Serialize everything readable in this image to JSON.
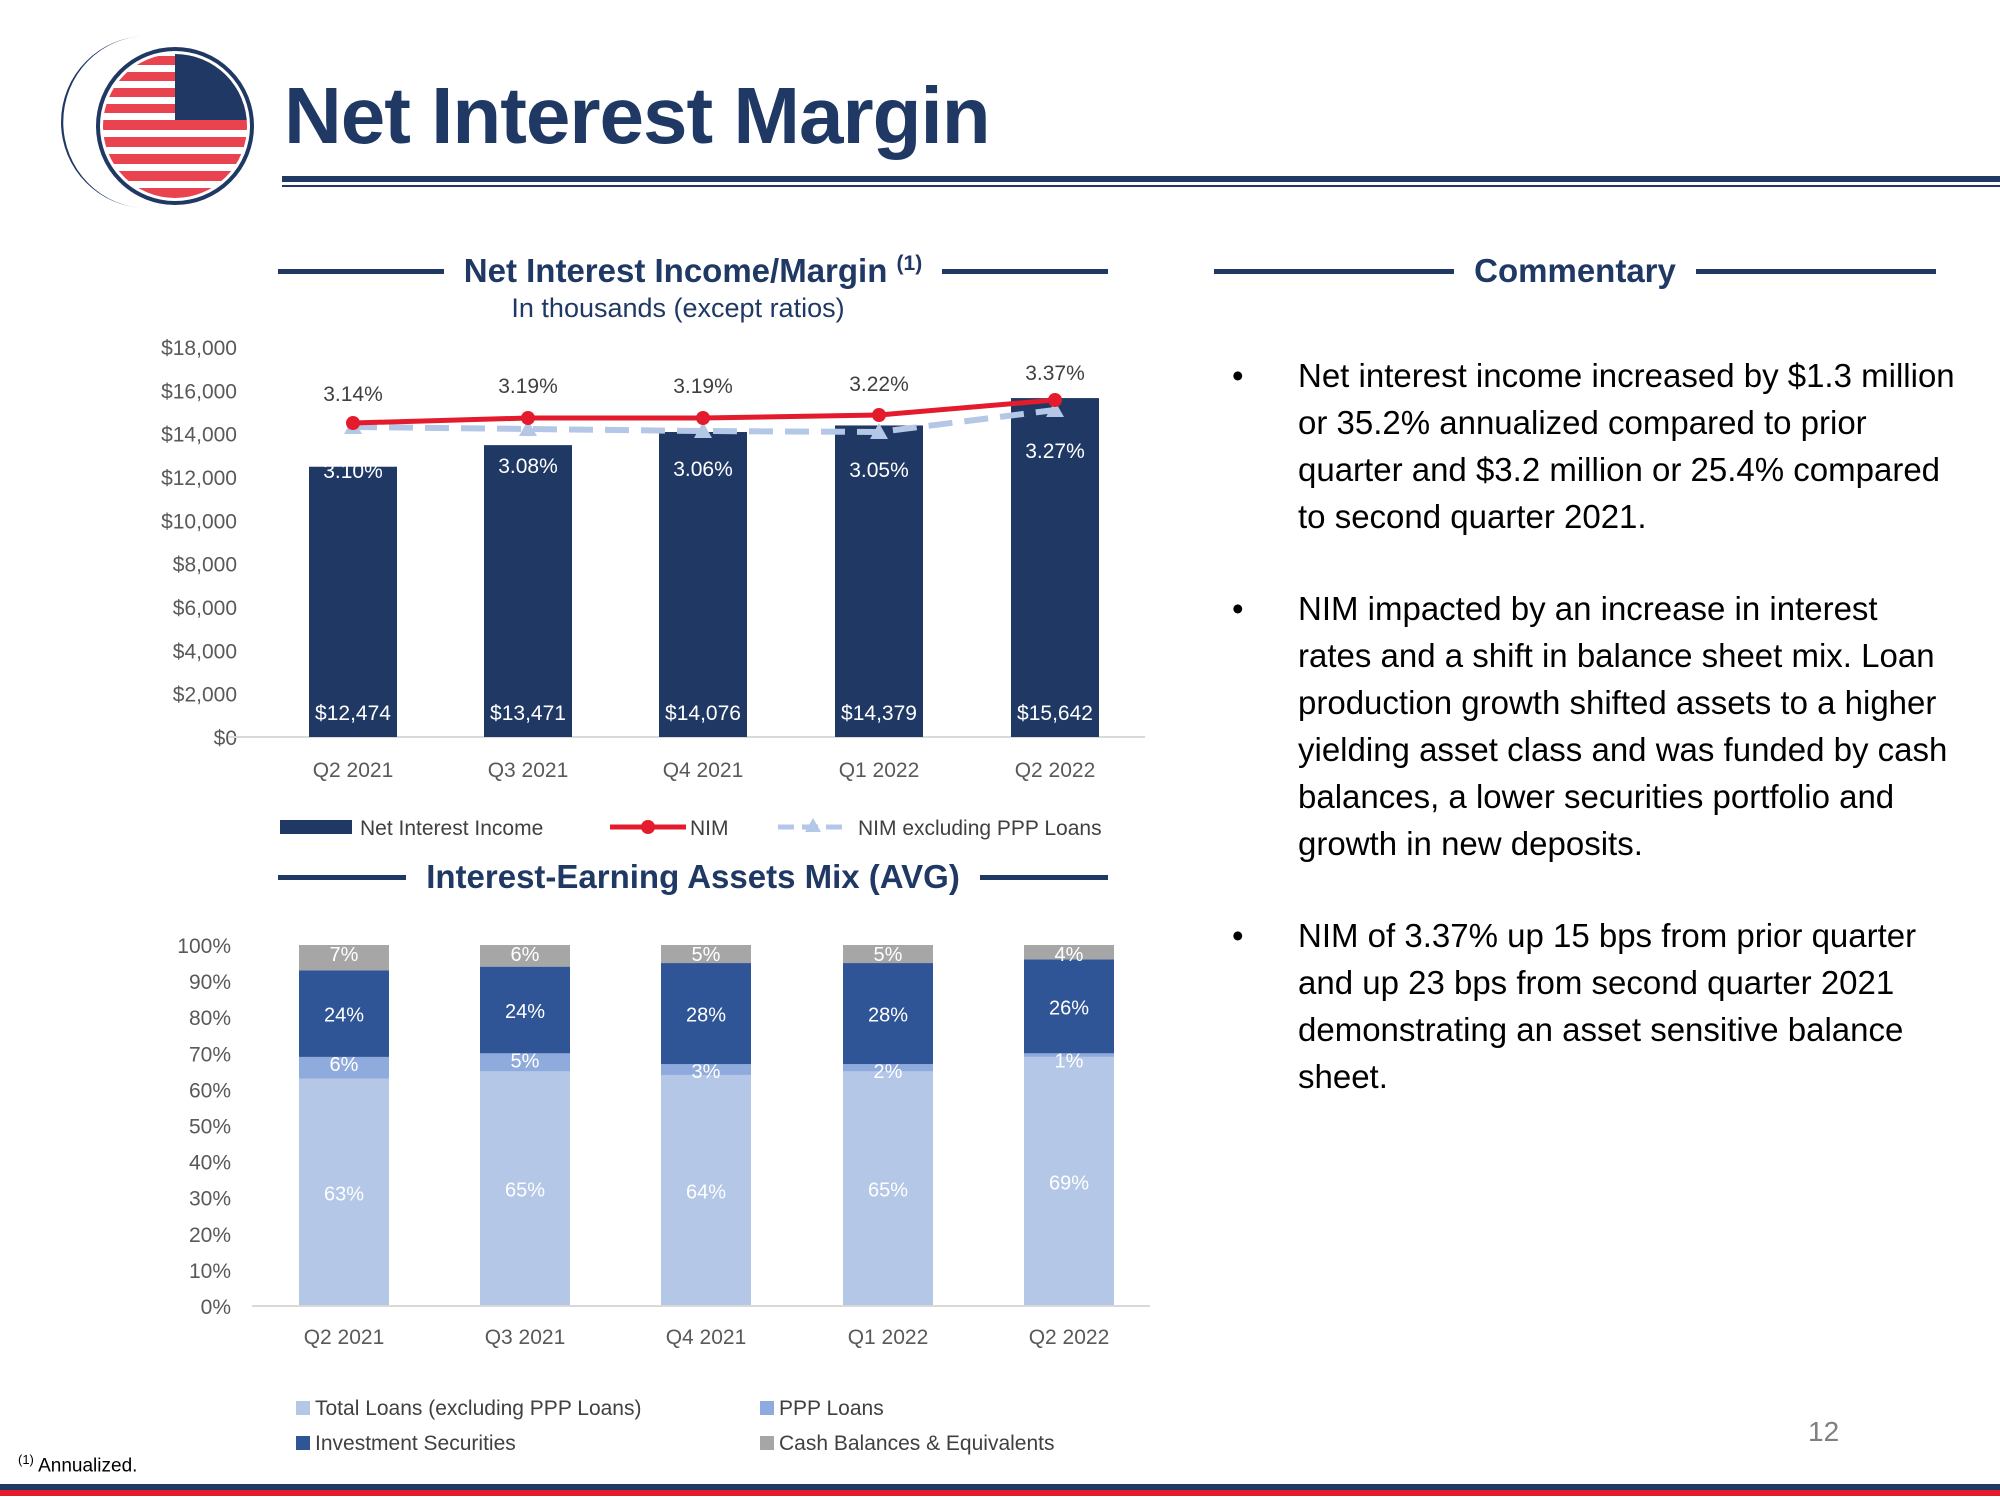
{
  "page": {
    "title": "Net Interest Margin",
    "page_number": "12",
    "footnote_marker": "(1)",
    "footnote_text": " Annualized."
  },
  "sections": {
    "nii_title": "Net Interest Income/Margin",
    "nii_title_sup": "(1)",
    "nii_subtitle": "In thousands (except ratios)",
    "iea_title": "Interest-Earning Assets Mix (AVG)",
    "commentary_title": "Commentary"
  },
  "commentary": [
    "Net interest income increased by $1.3 million or 35.2% annualized compared to prior quarter and $3.2 million or 25.4% compared to second quarter 2021.",
    "NIM impacted by an increase in interest rates and a shift in balance sheet mix. Loan production growth shifted assets to a higher yielding asset class and was funded by cash balances, a lower securities portfolio and growth in new deposits.",
    "NIM of 3.37% up 15 bps from prior quarter and up 23 bps from second quarter 2021 demonstrating an asset sensitive balance sheet."
  ],
  "colors": {
    "navy": "#1f3864",
    "nim_red": "#e31b2d",
    "nim_ex_ppp": "#b4c7e7",
    "total_loans": "#b4c7e7",
    "ppp_loans": "#8faadc",
    "investment_securities": "#2f5597",
    "cash": "#a6a6a6"
  },
  "chart_data": [
    {
      "type": "bar",
      "categories": [
        "Q2 2021",
        "Q3 2021",
        "Q4 2021",
        "Q1 2022",
        "Q2 2022"
      ],
      "ylim": [
        0,
        18000
      ],
      "yticks": [
        "$0",
        "$2,000",
        "$4,000",
        "$6,000",
        "$8,000",
        "$10,000",
        "$12,000",
        "$14,000",
        "$16,000",
        "$18,000"
      ],
      "series": [
        {
          "name": "Net Interest Income",
          "type": "bar",
          "values": [
            12474,
            13471,
            14076,
            14379,
            15642
          ],
          "labels": [
            "$12,474",
            "$13,471",
            "$14,076",
            "$14,379",
            "$15,642"
          ]
        },
        {
          "name": "NIM",
          "type": "line",
          "values": [
            3.14,
            3.19,
            3.19,
            3.22,
            3.37
          ],
          "labels": [
            "3.14%",
            "3.19%",
            "3.19%",
            "3.22%",
            "3.37%"
          ]
        },
        {
          "name": "NIM excluding PPP Loans",
          "type": "line",
          "values": [
            3.1,
            3.08,
            3.06,
            3.05,
            3.27
          ],
          "labels": [
            "3.10%",
            "3.08%",
            "3.06%",
            "3.05%",
            "3.27%"
          ]
        }
      ]
    },
    {
      "type": "bar",
      "stacked": true,
      "categories": [
        "Q2 2021",
        "Q3 2021",
        "Q4 2021",
        "Q1 2022",
        "Q2 2022"
      ],
      "ylim": [
        0,
        100
      ],
      "yticks": [
        "0%",
        "10%",
        "20%",
        "30%",
        "40%",
        "50%",
        "60%",
        "70%",
        "80%",
        "90%",
        "100%"
      ],
      "series": [
        {
          "name": "Total Loans (excluding PPP Loans)",
          "values": [
            63,
            65,
            64,
            65,
            69
          ],
          "labels": [
            "63%",
            "65%",
            "64%",
            "65%",
            "69%"
          ]
        },
        {
          "name": "PPP Loans",
          "values": [
            6,
            5,
            3,
            2,
            1
          ],
          "labels": [
            "6%",
            "5%",
            "3%",
            "2%",
            "1%"
          ]
        },
        {
          "name": "Investment Securities",
          "values": [
            24,
            24,
            28,
            28,
            26
          ],
          "labels": [
            "24%",
            "24%",
            "28%",
            "28%",
            "26%"
          ]
        },
        {
          "name": "Cash Balances & Equivalents",
          "values": [
            7,
            6,
            5,
            5,
            4
          ],
          "labels": [
            "7%",
            "6%",
            "5%",
            "5%",
            "4%"
          ]
        }
      ]
    }
  ]
}
